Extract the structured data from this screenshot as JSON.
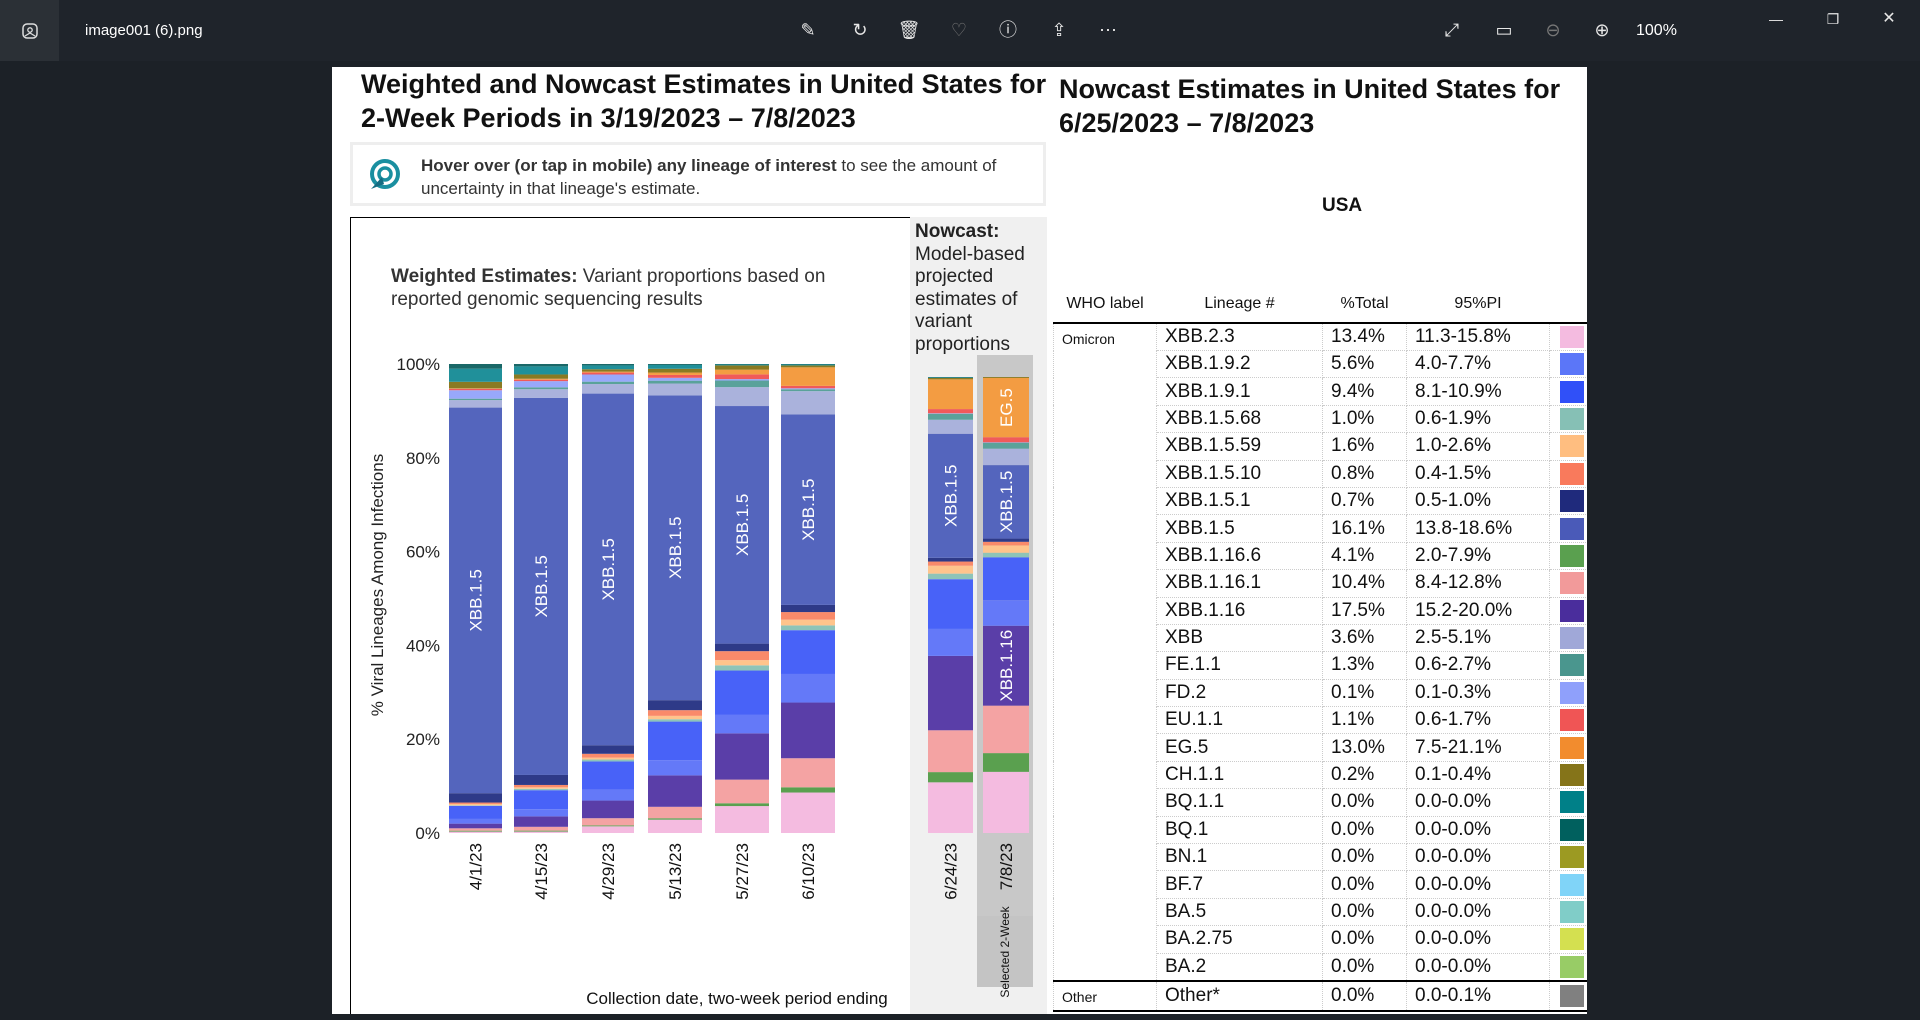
{
  "viewer": {
    "filename": "image001 (6).png",
    "zoom_level": "100%",
    "toolbar_icons": [
      "edit-icon",
      "rotate-icon",
      "delete-icon",
      "favorite-icon",
      "info-icon",
      "share-icon",
      "more-icon"
    ],
    "right_icons": [
      "fullscreen-icon",
      "fit-icon",
      "zoom-out-icon",
      "zoom-in-icon"
    ]
  },
  "left": {
    "title": "Weighted and Nowcast Estimates in United States for 2-Week Periods in 3/19/2023 – 7/8/2023",
    "info_bold": "Hover over (or tap in mobile) any lineage of interest",
    "info_rest": " to see the amount of uncertainty in that lineage's estimate.",
    "weighted_bold": "Weighted Estimates:",
    "weighted_rest": " Variant proportions based on reported genomic sequencing results",
    "nowcast_bold": "Nowcast:",
    "nowcast_rest": "Model-based projected estimates of variant proportions",
    "selected_label": "Selected 2-Week"
  },
  "right": {
    "title": "Nowcast Estimates in United States for 6/25/2023 – 7/8/2023",
    "region": "USA",
    "headers": [
      "WHO label",
      "Lineage #",
      "%Total",
      "95%PI"
    ],
    "who_omicron": "Omicron",
    "who_other": "Other",
    "rows": [
      {
        "lineage": "XBB.2.3",
        "total": "13.4%",
        "pi": "11.3-15.8%",
        "color": "#f4bbe0"
      },
      {
        "lineage": "XBB.1.9.2",
        "total": "5.6%",
        "pi": "4.0-7.7%",
        "color": "#5b76f8"
      },
      {
        "lineage": "XBB.1.9.1",
        "total": "9.4%",
        "pi": "8.1-10.9%",
        "color": "#3050f8"
      },
      {
        "lineage": "XBB.1.5.68",
        "total": "1.0%",
        "pi": "0.6-1.9%",
        "color": "#86c0b5"
      },
      {
        "lineage": "XBB.1.5.59",
        "total": "1.6%",
        "pi": "1.0-2.6%",
        "color": "#ffbe80"
      },
      {
        "lineage": "XBB.1.5.10",
        "total": "0.8%",
        "pi": "0.4-1.5%",
        "color": "#f97a5c"
      },
      {
        "lineage": "XBB.1.5.1",
        "total": "0.7%",
        "pi": "0.5-1.0%",
        "color": "#1f2a7c"
      },
      {
        "lineage": "XBB.1.5",
        "total": "16.1%",
        "pi": "13.8-18.6%",
        "color": "#4a5ab8"
      },
      {
        "lineage": "XBB.1.16.6",
        "total": "4.1%",
        "pi": "2.0-7.9%",
        "color": "#5aa04f"
      },
      {
        "lineage": "XBB.1.16.1",
        "total": "10.4%",
        "pi": "8.4-12.8%",
        "color": "#f29a9a"
      },
      {
        "lineage": "XBB.1.16",
        "total": "17.5%",
        "pi": "15.2-20.0%",
        "color": "#4a2d9c"
      },
      {
        "lineage": "XBB",
        "total": "3.6%",
        "pi": "2.5-5.1%",
        "color": "#a0a8d8"
      },
      {
        "lineage": "FE.1.1",
        "total": "1.3%",
        "pi": "0.6-2.7%",
        "color": "#4a968e"
      },
      {
        "lineage": "FD.2",
        "total": "0.1%",
        "pi": "0.1-0.3%",
        "color": "#8fa0fb"
      },
      {
        "lineage": "EU.1.1",
        "total": "1.1%",
        "pi": "0.6-1.7%",
        "color": "#f05555"
      },
      {
        "lineage": "EG.5",
        "total": "13.0%",
        "pi": "7.5-21.1%",
        "color": "#f28c2e"
      },
      {
        "lineage": "CH.1.1",
        "total": "0.2%",
        "pi": "0.1-0.4%",
        "color": "#857419"
      },
      {
        "lineage": "BQ.1.1",
        "total": "0.0%",
        "pi": "0.0-0.0%",
        "color": "#008088"
      },
      {
        "lineage": "BQ.1",
        "total": "0.0%",
        "pi": "0.0-0.0%",
        "color": "#00605e"
      },
      {
        "lineage": "BN.1",
        "total": "0.0%",
        "pi": "0.0-0.0%",
        "color": "#9c9a22"
      },
      {
        "lineage": "BF.7",
        "total": "0.0%",
        "pi": "0.0-0.0%",
        "color": "#80d4f8"
      },
      {
        "lineage": "BA.5",
        "total": "0.0%",
        "pi": "0.0-0.0%",
        "color": "#80cdc8"
      },
      {
        "lineage": "BA.2.75",
        "total": "0.0%",
        "pi": "0.0-0.0%",
        "color": "#d4e050"
      },
      {
        "lineage": "BA.2",
        "total": "0.0%",
        "pi": "0.0-0.0%",
        "color": "#98cc66"
      }
    ],
    "other_row": {
      "lineage": "Other*",
      "total": "0.0%",
      "pi": "0.0-0.1%",
      "color": "#808080"
    }
  },
  "chart_data": {
    "type": "bar",
    "stacked": true,
    "xlabel": "Collection date, two-week period ending",
    "ylabel": "% Viral Lineages Among Infections",
    "ylim": [
      0,
      100
    ],
    "y_ticks": [
      "0%",
      "20%",
      "40%",
      "60%",
      "80%",
      "100%"
    ],
    "categories": [
      "4/1/23",
      "4/15/23",
      "4/29/23",
      "5/13/23",
      "5/27/23",
      "6/10/23",
      "6/24/23",
      "7/8/23"
    ],
    "nowcast_categories": [
      "6/24/23",
      "7/8/23"
    ],
    "selected_category": "7/8/23",
    "series": [
      {
        "name": "XBB.2.3",
        "color": "#f4bbe0",
        "values": [
          0.3,
          0.3,
          1.4,
          2.8,
          5.7,
          8.5,
          10.9,
          13.4
        ]
      },
      {
        "name": "XBB.1.16.6",
        "color": "#5aa04f",
        "values": [
          0.2,
          0.2,
          0.2,
          0.3,
          0.6,
          1.1,
          2.2,
          4.1
        ]
      },
      {
        "name": "XBB.1.16.1",
        "color": "#f4a3a3",
        "values": [
          0.5,
          0.8,
          1.5,
          2.4,
          5.0,
          6.1,
          9.0,
          10.4
        ]
      },
      {
        "name": "XBB.1.16",
        "color": "#5a3ea8",
        "values": [
          1.0,
          2.2,
          3.7,
          6.6,
          9.8,
          11.7,
          16.0,
          17.5
        ]
      },
      {
        "name": "XBB.1.9.2",
        "color": "#6479f8",
        "values": [
          1.0,
          1.5,
          2.3,
          3.2,
          3.9,
          6.0,
          5.8,
          5.6
        ]
      },
      {
        "name": "XBB.1.9.1",
        "color": "#4862f8",
        "values": [
          2.8,
          4.0,
          5.9,
          8.1,
          9.4,
          9.2,
          10.7,
          9.4
        ]
      },
      {
        "name": "XBB.1.5.68",
        "color": "#8ec4b8",
        "values": [
          0.1,
          0.3,
          0.4,
          0.5,
          1.1,
          1.0,
          1.2,
          1.0
        ]
      },
      {
        "name": "XBB.1.5.59",
        "color": "#ffc48c",
        "values": [
          0.3,
          0.3,
          0.4,
          0.7,
          1.1,
          1.2,
          1.7,
          1.6
        ]
      },
      {
        "name": "XBB.1.5.10",
        "color": "#f98a6a",
        "values": [
          0.3,
          0.5,
          0.8,
          1.2,
          1.9,
          1.6,
          0.9,
          0.8
        ]
      },
      {
        "name": "XBB.1.5.1",
        "color": "#2e3a88",
        "values": [
          2.0,
          2.1,
          1.8,
          2.1,
          1.6,
          1.5,
          0.8,
          0.7
        ]
      },
      {
        "name": "XBB.1.5",
        "color": "#5465bd",
        "values": [
          82.3,
          79.3,
          73.7,
          64.0,
          50.3,
          40.0,
          26.7,
          16.1
        ]
      },
      {
        "name": "XBB",
        "color": "#aab2dc",
        "values": [
          1.6,
          1.8,
          2.0,
          2.5,
          4.0,
          4.9,
          3.0,
          3.6
        ]
      },
      {
        "name": "FE.1.1",
        "color": "#5aa29a",
        "values": [
          0.3,
          0.4,
          0.5,
          0.6,
          1.4,
          0.4,
          1.3,
          1.3
        ]
      },
      {
        "name": "FD.2",
        "color": "#98a8fb",
        "values": [
          1.8,
          1.3,
          1.5,
          0.6,
          0.3,
          0.2,
          0.1,
          0.1
        ]
      },
      {
        "name": "EU.1.1",
        "color": "#f05a5a",
        "values": [
          0.3,
          0.3,
          0.4,
          0.6,
          1.0,
          0.5,
          0.9,
          1.1
        ]
      },
      {
        "name": "EG.5",
        "color": "#f39c42",
        "values": [
          0.1,
          0.2,
          0.2,
          0.5,
          1.0,
          3.9,
          6.4,
          13.0
        ]
      },
      {
        "name": "CH.1.1",
        "color": "#8a7a22",
        "values": [
          1.4,
          0.9,
          0.5,
          0.8,
          0.9,
          0.4,
          0.3,
          0.2
        ]
      },
      {
        "name": "BQ.1.1",
        "color": "#20909a",
        "values": [
          2.8,
          1.7,
          0.8,
          0.8,
          0.2,
          0.2,
          0.1,
          0.0
        ]
      },
      {
        "name": "BQ.1",
        "color": "#1a6868",
        "values": [
          1.0,
          0.5,
          0.3,
          0.2,
          0.1,
          0.1,
          0.1,
          0.0
        ]
      }
    ],
    "segment_labels": [
      {
        "category": "4/1/23",
        "series": "XBB.1.5"
      },
      {
        "category": "4/15/23",
        "series": "XBB.1.5"
      },
      {
        "category": "4/29/23",
        "series": "XBB.1.5"
      },
      {
        "category": "5/13/23",
        "series": "XBB.1.5"
      },
      {
        "category": "5/27/23",
        "series": "XBB.1.5"
      },
      {
        "category": "6/10/23",
        "series": "XBB.1.5"
      },
      {
        "category": "6/24/23",
        "series": "XBB.1.5"
      },
      {
        "category": "7/8/23",
        "series": "XBB.1.5"
      },
      {
        "category": "7/8/23",
        "series": "XBB.1.16"
      },
      {
        "category": "7/8/23",
        "series": "EG.5"
      }
    ]
  }
}
